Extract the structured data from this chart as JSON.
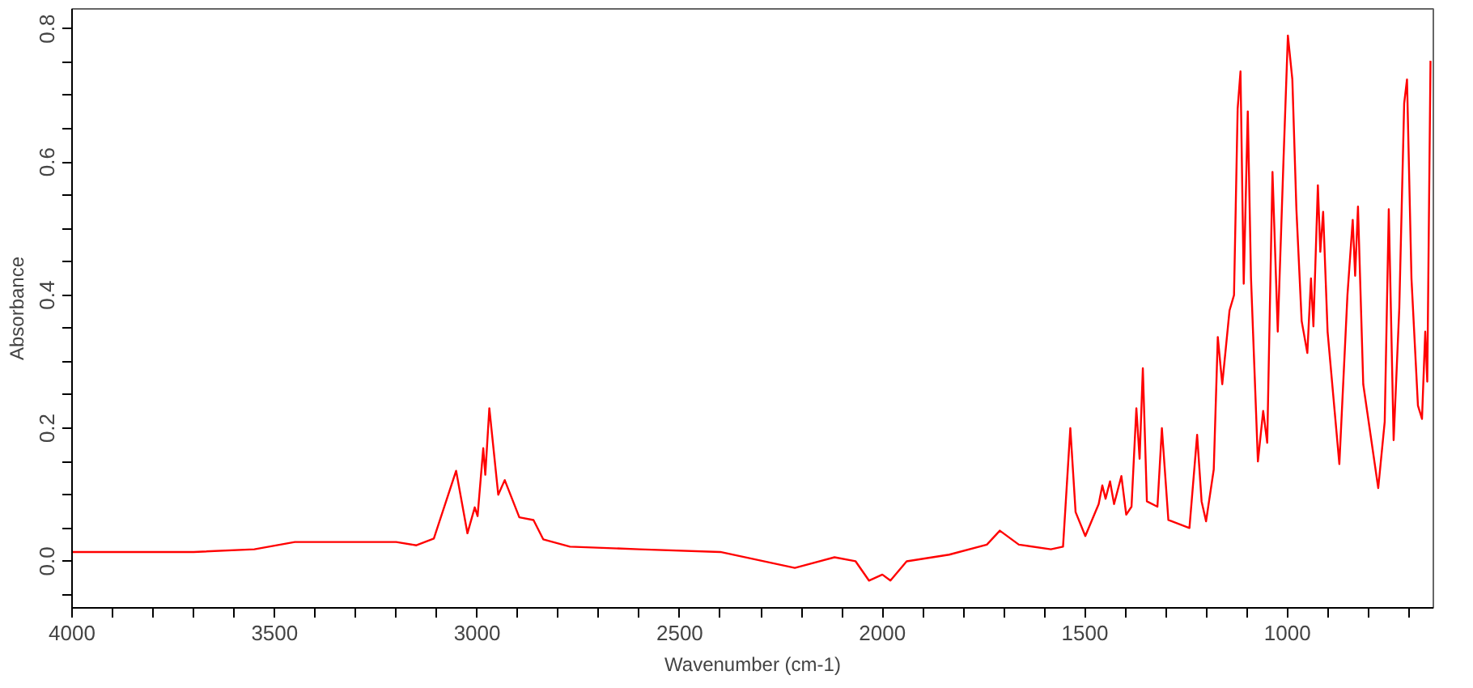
{
  "chart_data": {
    "type": "line",
    "xlabel": "Wavenumber (cm-1)",
    "ylabel": "Absorbance",
    "grid": false,
    "marker": "none",
    "line_style": "solid",
    "xlim": [
      4000,
      640
    ],
    "ylim": [
      -0.07,
      0.83
    ],
    "xticks": [
      4000,
      {
        "value": 3900,
        "label": null
      },
      {
        "value": 3800,
        "label": null
      },
      {
        "value": 3700,
        "label": null
      },
      {
        "value": 3600,
        "label": null
      },
      3500,
      {
        "value": 3400,
        "label": null
      },
      {
        "value": 3300,
        "label": null
      },
      {
        "value": 3200,
        "label": null
      },
      {
        "value": 3100,
        "label": null
      },
      3000,
      {
        "value": 2900,
        "label": null
      },
      {
        "value": 2800,
        "label": null
      },
      {
        "value": 2700,
        "label": null
      },
      {
        "value": 2600,
        "label": null
      },
      2500,
      {
        "value": 2400,
        "label": null
      },
      {
        "value": 2300,
        "label": null
      },
      {
        "value": 2200,
        "label": null
      },
      {
        "value": 2100,
        "label": null
      },
      2000,
      {
        "value": 1900,
        "label": null
      },
      {
        "value": 1800,
        "label": null
      },
      {
        "value": 1700,
        "label": null
      },
      {
        "value": 1600,
        "label": null
      },
      1500,
      {
        "value": 1400,
        "label": null
      },
      {
        "value": 1300,
        "label": null
      },
      {
        "value": 1200,
        "label": null
      },
      {
        "value": 1100,
        "label": null
      },
      1000,
      {
        "value": 900,
        "label": null
      },
      {
        "value": 800,
        "label": null
      },
      {
        "value": 700,
        "label": null
      }
    ],
    "yticks": [
      {
        "value": -0.05,
        "label": null
      },
      {
        "value": 0,
        "label": "0.0"
      },
      {
        "value": 0.05,
        "label": null
      },
      {
        "value": 0.1,
        "label": null
      },
      {
        "value": 0.15,
        "label": null
      },
      0.2,
      {
        "value": 0.25,
        "label": null
      },
      {
        "value": 0.3,
        "label": null
      },
      {
        "value": 0.35,
        "label": null
      },
      0.4,
      {
        "value": 0.45,
        "label": null
      },
      {
        "value": 0.5,
        "label": null
      },
      {
        "value": 0.55,
        "label": null
      },
      0.6,
      {
        "value": 0.65,
        "label": null
      },
      {
        "value": 0.7,
        "label": null
      },
      {
        "value": 0.75,
        "label": null
      },
      0.8
    ],
    "series": [
      {
        "color": "#ff0000",
        "x": [
          4000,
          3700,
          3550,
          3450,
          3200,
          3150,
          3107,
          3052,
          3024,
          3006,
          2999,
          2985,
          2980,
          2970,
          2948,
          2932,
          2896,
          2861,
          2837,
          2771,
          2600,
          2400,
          2216,
          2118,
          2066,
          2033,
          2000,
          1980,
          1940,
          1835,
          1742,
          1710,
          1663,
          1584,
          1554,
          1536,
          1523,
          1499,
          1466,
          1457,
          1449,
          1438,
          1428,
          1410,
          1398,
          1385,
          1373,
          1365,
          1357,
          1347,
          1321,
          1310,
          1294,
          1242,
          1223,
          1212,
          1201,
          1182,
          1172,
          1161,
          1143,
          1132,
          1123,
          1116,
          1108,
          1098,
          1090,
          1073,
          1060,
          1050,
          1037,
          1024,
          1010,
          999,
          988,
          978,
          965,
          951,
          942,
          936,
          925,
          919,
          912,
          901,
          872,
          852,
          839,
          833,
          826,
          813,
          776,
          760,
          750,
          738,
          724,
          712,
          705,
          694,
          678,
          668,
          660,
          655,
          647
        ],
        "values": [
          0.014,
          0.014,
          0.018,
          0.029,
          0.029,
          0.024,
          0.034,
          0.136,
          0.042,
          0.081,
          0.068,
          0.17,
          0.13,
          0.23,
          0.1,
          0.122,
          0.066,
          0.062,
          0.033,
          0.022,
          0.018,
          0.014,
          -0.01,
          0.006,
          0.0,
          -0.029,
          -0.02,
          -0.029,
          0.0,
          0.01,
          0.025,
          0.046,
          0.025,
          0.018,
          0.022,
          0.2,
          0.074,
          0.038,
          0.086,
          0.114,
          0.094,
          0.12,
          0.086,
          0.128,
          0.07,
          0.082,
          0.23,
          0.154,
          0.29,
          0.09,
          0.082,
          0.2,
          0.062,
          0.05,
          0.19,
          0.09,
          0.06,
          0.138,
          0.337,
          0.266,
          0.377,
          0.4,
          0.68,
          0.736,
          0.417,
          0.676,
          0.425,
          0.15,
          0.226,
          0.178,
          0.585,
          0.345,
          0.6,
          0.79,
          0.724,
          0.529,
          0.361,
          0.313,
          0.425,
          0.353,
          0.565,
          0.465,
          0.525,
          0.345,
          0.146,
          0.4,
          0.513,
          0.429,
          0.533,
          0.266,
          0.11,
          0.21,
          0.529,
          0.182,
          0.381,
          0.688,
          0.724,
          0.425,
          0.234,
          0.214,
          0.345,
          0.27,
          0.752
        ]
      }
    ]
  }
}
